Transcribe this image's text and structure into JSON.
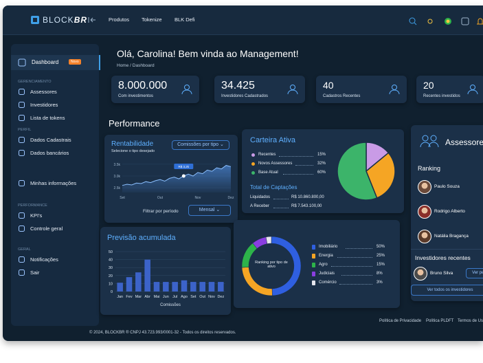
{
  "header": {
    "logo": "BLOCK",
    "logo_accent": "BR",
    "nav": [
      "Produtos",
      "Tokenize",
      "BLK Defi"
    ]
  },
  "sidebar": {
    "active": {
      "label": "Dashboard",
      "badge": "Novo"
    },
    "groups": [
      {
        "title": "GERENCIAMENTO",
        "items": [
          "Assessores",
          "Investidores",
          "Lista de tokens"
        ]
      },
      {
        "title": "PERFIL",
        "items": [
          "Dados Cadastrais",
          "Dados bancários"
        ]
      },
      {
        "items": [
          "Minhas informações"
        ]
      },
      {
        "title": "PERFORMANCE",
        "items": [
          "KPI's",
          "Controle geral"
        ]
      },
      {
        "title": "GERAL",
        "items": [
          "Notificações",
          "Sair"
        ]
      }
    ]
  },
  "greeting": "Olá, Carolina! Bem vinda ao Management!",
  "breadcrumb": [
    "Home",
    "Dashboard"
  ],
  "stats": [
    {
      "value": "8.000.000",
      "label": "Com investimentos"
    },
    {
      "value": "34.425",
      "label": "Investidores Cadastrados"
    },
    {
      "value": "40",
      "label": "Cadastros Recentes"
    },
    {
      "value": "20",
      "label": "Recentes investidos"
    }
  ],
  "performance_title": "Performance",
  "rentabilidade": {
    "title": "Rentabilidade",
    "subtitle": "Selecione o tipo desejado",
    "dropdown": "Comissões por tipo",
    "filter_label": "Filtrar por período",
    "period": "Mensal",
    "tooltip": "R$ 3,2k",
    "chart": {
      "type": "line",
      "categories": [
        "Set",
        null,
        null,
        null,
        null,
        null,
        null,
        null,
        "Out",
        null,
        null,
        null,
        null,
        null,
        null,
        null,
        "Nov",
        null,
        null,
        null,
        null,
        null,
        null,
        "Dez"
      ],
      "values": [
        2600,
        2650,
        2620,
        2700,
        2680,
        2760,
        2720,
        2800,
        2850,
        2780,
        2900,
        2950,
        2880,
        3000,
        3080,
        3000,
        3150,
        3100,
        3250,
        3200,
        3350,
        3300,
        3450,
        3400
      ],
      "color": "#5aa0ff",
      "ylim": [
        2300,
        3700
      ],
      "yticks": [
        {
          "value": 2500,
          "label": "2.5k"
        },
        {
          "value": 3000,
          "label": "3.0k"
        },
        {
          "value": 3500,
          "label": "3.5k"
        }
      ]
    }
  },
  "carteira": {
    "title": "Carteira Ativa",
    "items": [
      {
        "name": "Recentes",
        "value": 15,
        "value_label": "15%",
        "color": "#c99be6"
      },
      {
        "name": "Novos Assessores",
        "value": 32,
        "value_label": "32%",
        "color": "#f5a524"
      },
      {
        "name": "Base Atual",
        "value": 60,
        "value_label": "60%",
        "color": "#3cb46a"
      }
    ],
    "totals_title": "Total de Captações",
    "totals": [
      {
        "label": "Liquidados",
        "value": "R$ 10.860.800,00"
      },
      {
        "label": "A Receber",
        "value": "R$ 7.543.100,00"
      }
    ]
  },
  "previsao": {
    "title": "Previsão acumulada",
    "chart": {
      "type": "bar",
      "categories": [
        "Jan",
        "Fev",
        "Mar",
        "Abr",
        "Mai",
        "Jun",
        "Jul",
        "Ago",
        "Set",
        "Out",
        "Nov",
        "Dez"
      ],
      "values": [
        11,
        18,
        24,
        40,
        12,
        12,
        12,
        14,
        12,
        12,
        12,
        12
      ],
      "color": "#3c63c9",
      "ylim": [
        0,
        50
      ],
      "yticks": [
        0,
        10,
        20,
        30,
        40,
        50
      ],
      "xlabel": "Comissões"
    }
  },
  "ativos": {
    "center": "Ranking por tipo de ativo",
    "items": [
      {
        "name": "Imobiliário",
        "value": 50,
        "value_label": "50%",
        "color": "#2f5fe0"
      },
      {
        "name": "Energia",
        "value": 25,
        "value_label": "25%",
        "color": "#f5a524"
      },
      {
        "name": "Agro",
        "value": 15,
        "value_label": "15%",
        "color": "#2db34a"
      },
      {
        "name": "Judiciais",
        "value": 8,
        "value_label": "8%",
        "color": "#8a3ee0"
      },
      {
        "name": "Comércio",
        "value": 3,
        "value_label": "3%",
        "color": "#e6e6ee"
      }
    ]
  },
  "assessores": {
    "title": "Assessores",
    "ranking_title": "Ranking",
    "ranking": [
      "Paulo Souza",
      "Rodrigo Alberto",
      "Natália Bragança"
    ],
    "recent_title": "Investidores recentes",
    "recent": [
      "Bruno Silva"
    ],
    "profile_button": "Ver perfil",
    "all_button": "Ver todos os investidores"
  },
  "footer": {
    "copyright": "© 2024, BLOCKBR ® CNPJ 43.723.993/0001-32 - Todos os direitos reservados.",
    "links": [
      "Política de Privacidade",
      "Política PLDFT",
      "Termos de Uso"
    ]
  }
}
